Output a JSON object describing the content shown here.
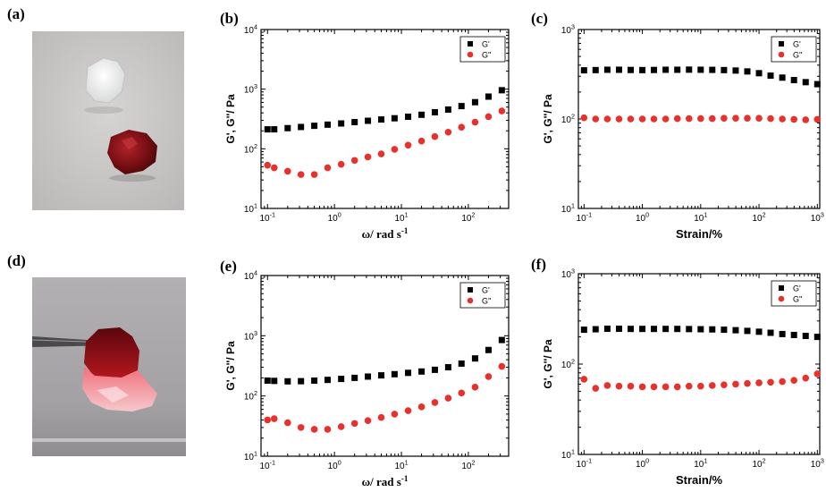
{
  "panels": {
    "a": "(a)",
    "b": "(b)",
    "c": "(c)",
    "d": "(d)",
    "e": "(e)",
    "f": "(f)"
  },
  "colors": {
    "g_storage": "#000000",
    "g_loss": "#e8302c",
    "photo_a_bg": "#c9c7c6",
    "photo_d_bg": "#a7a5a7",
    "gel_red": "#7a0f14",
    "gel_clear": "#e9eaea"
  },
  "chart_data": [
    {
      "id": "b",
      "type": "scatter",
      "xscale": "log",
      "yscale": "log",
      "xlim": [
        0.08,
        400
      ],
      "ylim": [
        10,
        10000
      ],
      "xlabel": "ω/ rad s-1",
      "ylabel": "G', G''/ Pa",
      "xticks": [
        "10-1",
        "100",
        "101",
        "102"
      ],
      "yticks": [
        "101",
        "102",
        "103",
        "104"
      ],
      "legend_position": "top-right",
      "series": [
        {
          "name": "G'",
          "marker": "square",
          "x": [
            0.1,
            0.126,
            0.2,
            0.316,
            0.5,
            0.79,
            1.26,
            2,
            3.16,
            5,
            7.9,
            12.6,
            20,
            31.6,
            50,
            79,
            126,
            200,
            316
          ],
          "y": [
            212,
            212,
            222,
            232,
            243,
            254,
            266,
            280,
            295,
            310,
            325,
            345,
            372,
            410,
            455,
            520,
            605,
            750,
            960
          ]
        },
        {
          "name": "G''",
          "marker": "circle",
          "x": [
            0.1,
            0.126,
            0.2,
            0.316,
            0.5,
            0.79,
            1.26,
            2,
            3.16,
            5,
            7.9,
            12.6,
            20,
            31.6,
            50,
            79,
            126,
            200,
            316
          ],
          "y": [
            53,
            48,
            42,
            37,
            37,
            48,
            55,
            64,
            73,
            82,
            98,
            115,
            135,
            160,
            190,
            230,
            280,
            345,
            430
          ]
        }
      ]
    },
    {
      "id": "c",
      "type": "scatter",
      "xscale": "log",
      "yscale": "log",
      "xlim": [
        0.08,
        1100
      ],
      "ylim": [
        10,
        1000
      ],
      "xlabel": "Strain/%",
      "ylabel": "G', G''/ Pa",
      "xticks": [
        "10-1",
        "100",
        "101",
        "102",
        "103"
      ],
      "yticks": [
        "101",
        "102",
        "103"
      ],
      "legend_position": "top-right",
      "series": [
        {
          "name": "G'",
          "marker": "square",
          "x": [
            0.1,
            0.158,
            0.251,
            0.398,
            0.631,
            1,
            1.58,
            2.51,
            3.98,
            6.31,
            10,
            15.8,
            25.1,
            39.8,
            63.1,
            100,
            158,
            251,
            398,
            631,
            1000
          ],
          "y": [
            350,
            352,
            355,
            355,
            353,
            352,
            353,
            355,
            355,
            356,
            355,
            354,
            352,
            348,
            340,
            325,
            305,
            290,
            272,
            258,
            245
          ]
        },
        {
          "name": "G''",
          "marker": "circle",
          "x": [
            0.1,
            0.158,
            0.251,
            0.398,
            0.631,
            1,
            1.58,
            2.51,
            3.98,
            6.31,
            10,
            15.8,
            25.1,
            39.8,
            63.1,
            100,
            158,
            251,
            398,
            631,
            1000
          ],
          "y": [
            103,
            100,
            100,
            100,
            100,
            100,
            100,
            100,
            101,
            101,
            101,
            101,
            102,
            102,
            102,
            102,
            101,
            100,
            99,
            98,
            99
          ]
        }
      ]
    },
    {
      "id": "e",
      "type": "scatter",
      "xscale": "log",
      "yscale": "log",
      "xlim": [
        0.08,
        400
      ],
      "ylim": [
        10,
        10000
      ],
      "xlabel": "ω/ rad s-1",
      "ylabel": "G', G''/ Pa",
      "xticks": [
        "10-1",
        "100",
        "101",
        "102"
      ],
      "yticks": [
        "101",
        "102",
        "103",
        "104"
      ],
      "legend_position": "top-right",
      "series": [
        {
          "name": "G'",
          "marker": "square",
          "x": [
            0.1,
            0.126,
            0.2,
            0.316,
            0.5,
            0.79,
            1.26,
            2,
            3.16,
            5,
            7.9,
            12.6,
            20,
            31.6,
            50,
            79,
            126,
            200,
            316
          ],
          "y": [
            180,
            178,
            175,
            176,
            180,
            185,
            192,
            200,
            210,
            220,
            230,
            242,
            255,
            272,
            300,
            345,
            420,
            580,
            850
          ]
        },
        {
          "name": "G''",
          "marker": "circle",
          "x": [
            0.1,
            0.126,
            0.2,
            0.316,
            0.5,
            0.79,
            1.26,
            2,
            3.16,
            5,
            7.9,
            12.6,
            20,
            31.6,
            50,
            79,
            126,
            200,
            316
          ],
          "y": [
            40,
            42,
            36,
            30,
            28,
            28,
            31,
            35,
            39,
            44,
            50,
            57,
            66,
            78,
            92,
            112,
            140,
            210,
            310
          ]
        }
      ]
    },
    {
      "id": "f",
      "type": "scatter",
      "xscale": "log",
      "yscale": "log",
      "xlim": [
        0.08,
        1100
      ],
      "ylim": [
        10,
        1000
      ],
      "xlabel": "Strain/%",
      "ylabel": "G', G''/ Pa",
      "xticks": [
        "10-1",
        "100",
        "101",
        "102",
        "103"
      ],
      "yticks": [
        "101",
        "102",
        "103"
      ],
      "legend_position": "top-right",
      "series": [
        {
          "name": "G'",
          "marker": "square",
          "x": [
            0.1,
            0.158,
            0.251,
            0.398,
            0.631,
            1,
            1.58,
            2.51,
            3.98,
            6.31,
            10,
            15.8,
            25.1,
            39.8,
            63.1,
            100,
            158,
            251,
            398,
            631,
            1000
          ],
          "y": [
            240,
            243,
            246,
            246,
            245,
            245,
            245,
            245,
            245,
            244,
            243,
            242,
            240,
            237,
            233,
            228,
            222,
            215,
            210,
            205,
            200
          ]
        },
        {
          "name": "G''",
          "marker": "circle",
          "x": [
            0.1,
            0.158,
            0.251,
            0.398,
            0.631,
            1,
            1.58,
            2.51,
            3.98,
            6.31,
            10,
            15.8,
            25.1,
            39.8,
            63.1,
            100,
            158,
            251,
            398,
            631,
            1000
          ],
          "y": [
            68,
            54,
            58,
            57,
            57,
            56,
            56,
            56,
            56,
            57,
            57,
            58,
            59,
            60,
            61,
            62,
            63,
            64,
            66,
            70,
            78
          ]
        }
      ]
    }
  ]
}
